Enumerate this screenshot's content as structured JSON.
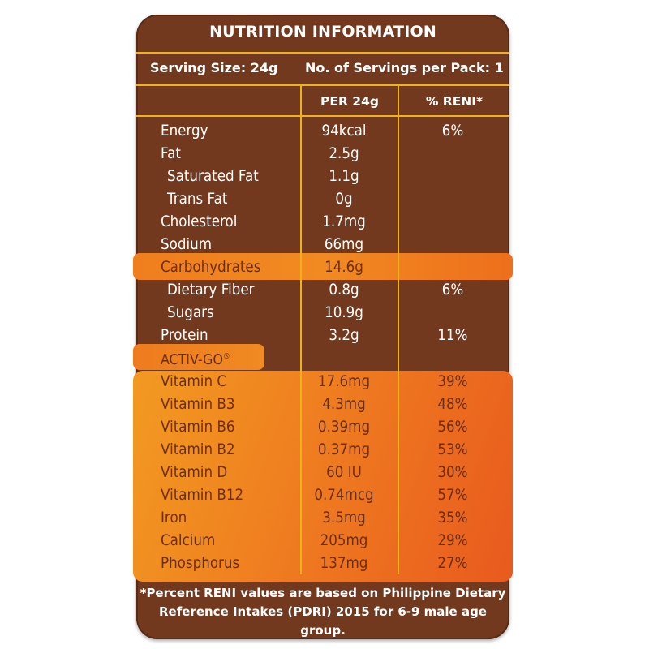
{
  "label": {
    "title": "NUTRITION INFORMATION",
    "serving_size": "Serving Size: 24g",
    "servings_per_pack": "No. of Servings per Pack: 1",
    "col_per": "PER 24g",
    "col_reni": "% RENI*",
    "group_label": "ACTIV-GO",
    "group_mark": "®",
    "nutrients": [
      {
        "name": "Energy",
        "value": "94kcal",
        "reni": "6%"
      },
      {
        "name": "Fat",
        "value": "2.5g",
        "reni": ""
      },
      {
        "name": "Saturated Fat",
        "value": "1.1g",
        "reni": ""
      },
      {
        "name": "Trans Fat",
        "value": "0g",
        "reni": ""
      },
      {
        "name": "Cholesterol",
        "value": "1.7mg",
        "reni": ""
      },
      {
        "name": "Sodium",
        "value": "66mg",
        "reni": ""
      },
      {
        "name": "Carbohydrates",
        "value": "14.6g",
        "reni": ""
      },
      {
        "name": "Dietary Fiber",
        "value": "0.8g",
        "reni": "6%"
      },
      {
        "name": "Sugars",
        "value": "10.9g",
        "reni": ""
      },
      {
        "name": "Protein",
        "value": "3.2g",
        "reni": "11%"
      }
    ],
    "vitamins": [
      {
        "name": "Vitamin C",
        "value": "17.6mg",
        "reni": "39%"
      },
      {
        "name": "Vitamin B3",
        "value": "4.3mg",
        "reni": "48%"
      },
      {
        "name": "Vitamin B6",
        "value": "0.39mg",
        "reni": "56%"
      },
      {
        "name": "Vitamin B2",
        "value": "0.37mg",
        "reni": "53%"
      },
      {
        "name": "Vitamin D",
        "value": "60 IU",
        "reni": "30%"
      },
      {
        "name": "Vitamin B12",
        "value": "0.74mcg",
        "reni": "57%"
      },
      {
        "name": "Iron",
        "value": "3.5mg",
        "reni": "35%"
      },
      {
        "name": "Calcium",
        "value": "205mg",
        "reni": "29%"
      },
      {
        "name": "Phosphorus",
        "value": "137mg",
        "reni": "27%"
      }
    ],
    "footnote_line1": "*Percent RENI values are based on Philippine Dietary",
    "footnote_line2": "Reference Intakes (PDRI) 2015 for 6-9 male age group.",
    "colors": {
      "panel": "#73391f",
      "rule": "#f0b21a",
      "highlight": "#f08420",
      "dark_text": "#6b2e12"
    }
  }
}
